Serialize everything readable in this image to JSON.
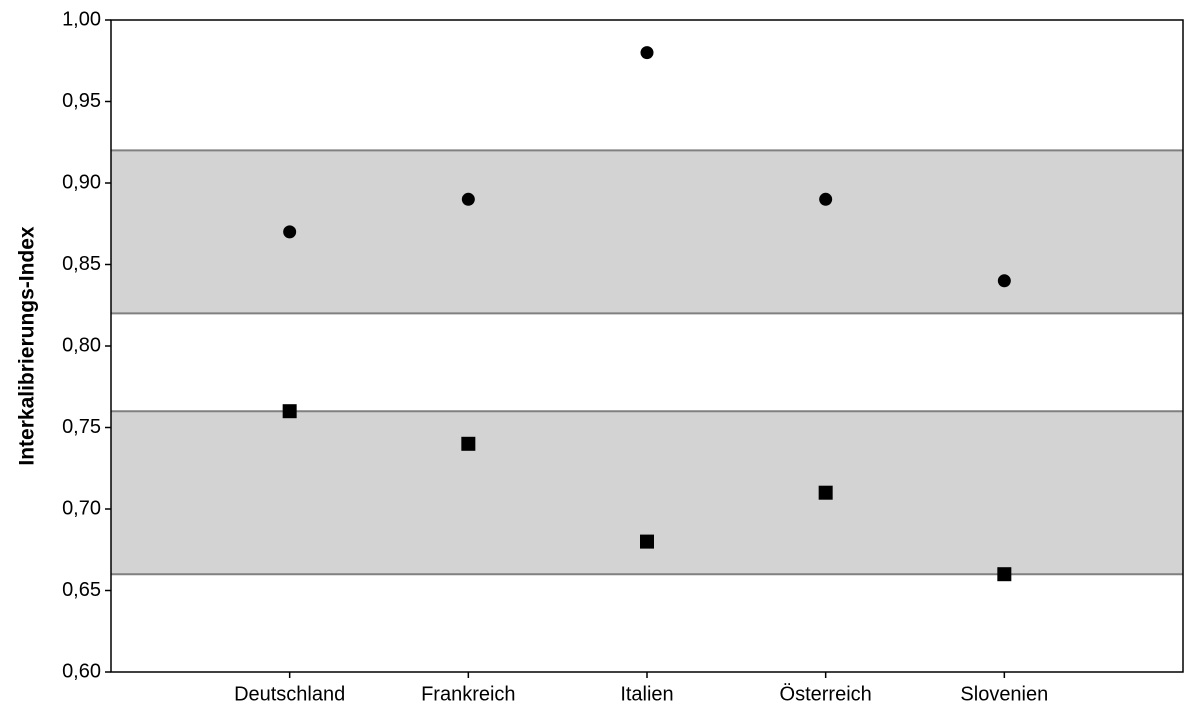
{
  "chart_data": {
    "type": "scatter",
    "y_label": "Interkalibrierungs-Index",
    "categories": [
      "Deutschland",
      "Frankreich",
      "Italien",
      "Österreich",
      "Slovenien"
    ],
    "series": [
      {
        "color": "#000000",
        "marker": "circle",
        "values": [
          0.87,
          0.89,
          0.98,
          0.89,
          0.84
        ]
      },
      {
        "color": "#000000",
        "marker": "square",
        "values": [
          0.76,
          0.74,
          0.68,
          0.71,
          0.66
        ]
      }
    ],
    "bands": [
      {
        "from": 0.82,
        "to": 0.92
      },
      {
        "from": 0.66,
        "to": 0.76
      }
    ],
    "band_color": "#d3d3d3",
    "ylim": [
      0.6,
      1.0
    ],
    "yticks": [
      {
        "value": 0.6,
        "label": "0,60"
      },
      {
        "value": 0.65,
        "label": "0,65"
      },
      {
        "value": 0.7,
        "label": "0,70"
      },
      {
        "value": 0.75,
        "label": "0,75"
      },
      {
        "value": 0.8,
        "label": "0,80"
      },
      {
        "value": 0.85,
        "label": "0,85"
      },
      {
        "value": 0.9,
        "label": "0,90"
      },
      {
        "value": 0.95,
        "label": "0,95"
      },
      {
        "value": 1.0,
        "label": "1,00"
      }
    ]
  }
}
